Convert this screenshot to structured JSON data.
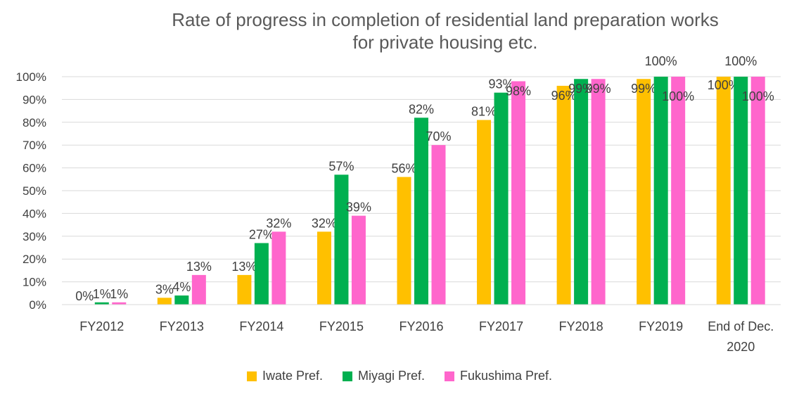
{
  "chart_data": {
    "type": "bar",
    "title_line1": "Rate of progress in completion of residential land preparation works",
    "title_line2": "for private housing etc.",
    "categories": [
      "FY2012",
      "FY2013",
      "FY2014",
      "FY2015",
      "FY2016",
      "FY2017",
      "FY2018",
      "FY2019",
      "End of Dec. 2020"
    ],
    "series": [
      {
        "name": "Iwate Pref.",
        "color": "#FFC000",
        "values": [
          0,
          3,
          13,
          32,
          56,
          81,
          96,
          99,
          100
        ]
      },
      {
        "name": "Miyagi Pref.",
        "color": "#00B050",
        "values": [
          1,
          4,
          27,
          57,
          82,
          93,
          99,
          100,
          100
        ]
      },
      {
        "name": "Fukushima Pref.",
        "color": "#FF66CC",
        "values": [
          1,
          13,
          32,
          39,
          70,
          98,
          99,
          100,
          100
        ]
      }
    ],
    "ylim": [
      0,
      100
    ],
    "yticks": [
      "0%",
      "10%",
      "20%",
      "30%",
      "40%",
      "50%",
      "60%",
      "70%",
      "80%",
      "90%",
      "100%"
    ],
    "grid": true,
    "legend_position": "bottom"
  }
}
